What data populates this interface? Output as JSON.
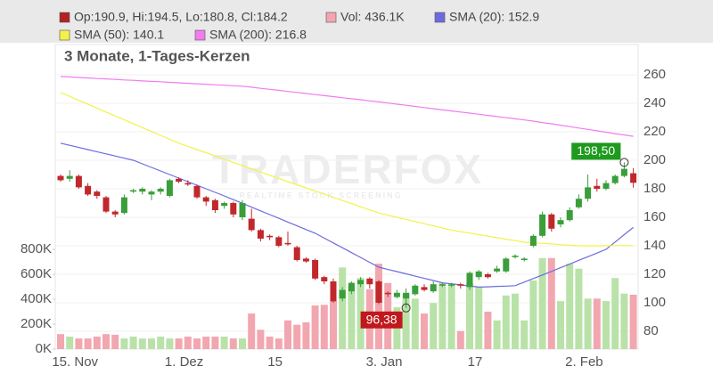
{
  "chart_data": {
    "type": "candlestick",
    "subtitle": "3 Monate, 1-Tages-Kerzen",
    "watermark": {
      "text": "TRADERFOX",
      "tagline": "REALTIME STOCK SCREENING"
    },
    "categories": [
      null,
      "15. Nov",
      null,
      null,
      null,
      null,
      null,
      null,
      null,
      null,
      null,
      null,
      null,
      "1. Dez",
      null,
      null,
      null,
      null,
      null,
      null,
      null,
      null,
      null,
      "15",
      null,
      null,
      null,
      null,
      null,
      null,
      null,
      null,
      null,
      null,
      null,
      "3. Jan",
      null,
      null,
      null,
      null,
      null,
      null,
      null,
      null,
      null,
      "17",
      null,
      null,
      null,
      null,
      null,
      null,
      null,
      null,
      null,
      null,
      null,
      "2. Feb",
      null,
      null,
      null,
      null,
      null,
      null
    ],
    "candles": {
      "name": "Op:190.9, Hi:194.5, Lo:180.8, Cl:184.2",
      "color": "#b22222",
      "up_color": "#3a9e3a",
      "down_color": "#c0282c",
      "open": [
        189,
        187,
        189,
        182,
        178,
        174,
        164,
        163,
        178,
        178,
        176,
        178,
        175,
        187,
        184,
        182,
        174,
        172,
        168,
        170,
        160,
        159,
        151,
        147,
        146,
        142,
        139,
        131,
        130,
        118,
        115,
        103,
        108,
        113,
        117,
        115,
        107,
        104,
        103,
        106,
        111,
        108,
        112,
        112,
        113,
        111,
        118,
        120,
        122,
        122,
        132,
        130,
        140,
        147,
        162,
        155,
        158,
        167,
        173,
        182,
        180,
        184,
        189,
        190.9
      ],
      "high": [
        190,
        193,
        190,
        184,
        179,
        175,
        165,
        176,
        180,
        181,
        179,
        181,
        187,
        188,
        186,
        183,
        175,
        173,
        171,
        171,
        172,
        166,
        152,
        148,
        147,
        150,
        140,
        132,
        131,
        119,
        117,
        111,
        115,
        118,
        118,
        116,
        108,
        109,
        110,
        113,
        113,
        115,
        114,
        114,
        114,
        122,
        123,
        121,
        126,
        132,
        134,
        132,
        148,
        164,
        163,
        160,
        167,
        176,
        190,
        187,
        186,
        190,
        198.5,
        194.5
      ],
      "low": [
        185,
        185,
        180,
        175,
        173,
        163,
        160,
        162,
        177,
        176,
        172,
        176,
        174,
        184,
        182,
        173,
        168,
        163,
        166,
        160,
        158,
        150,
        143,
        144,
        139,
        140,
        129,
        128,
        116,
        113,
        100,
        101,
        106,
        111,
        110,
        99,
        104,
        103,
        96.38,
        105,
        108,
        107,
        111,
        111,
        110,
        109,
        116,
        117,
        121,
        121,
        131,
        129,
        139,
        146,
        150,
        153,
        157,
        166,
        171,
        178,
        179,
        183,
        188,
        180.8
      ],
      "close": [
        186,
        189,
        181,
        176,
        175,
        164,
        162,
        174,
        179,
        180,
        178,
        180,
        186,
        185,
        183,
        174,
        171,
        165,
        170,
        162,
        170,
        151,
        145,
        146,
        140,
        141,
        130,
        129,
        117,
        115,
        101,
        109,
        114,
        116,
        113,
        100,
        106,
        107,
        107,
        112,
        109,
        113,
        113,
        113,
        112,
        121,
        122,
        118,
        124,
        131,
        133,
        131,
        147,
        162,
        152,
        158,
        165,
        173,
        181,
        180,
        184,
        189,
        194,
        184.2
      ]
    },
    "volume": {
      "name": "Vol: 436.1K",
      "color": "#f2a7b0",
      "up_color": "#b9e2a8",
      "axis": "y2",
      "values": [
        120,
        100,
        85,
        85,
        100,
        120,
        115,
        85,
        100,
        85,
        85,
        100,
        85,
        85,
        100,
        85,
        100,
        100,
        100,
        85,
        85,
        285,
        155,
        100,
        85,
        230,
        195,
        215,
        350,
        355,
        385,
        655,
        500,
        570,
        480,
        685,
        530,
        335,
        445,
        405,
        285,
        370,
        530,
        515,
        145,
        530,
        500,
        300,
        230,
        430,
        445,
        230,
        550,
        730,
        730,
        385,
        685,
        645,
        405,
        405,
        385,
        570,
        445,
        436.1
      ]
    },
    "series": [
      {
        "name": "SMA (20): 152.9",
        "color": "#6b6be0",
        "values": [
          212,
          210.5,
          209,
          207.5,
          206,
          204.5,
          203,
          201.5,
          200,
          197.5,
          195,
          192.5,
          190,
          187.5,
          185,
          182.5,
          180,
          177.5,
          175,
          172.4,
          169.8,
          167.1,
          164.5,
          161.9,
          159.3,
          156.6,
          154.0,
          151.4,
          148.8,
          145.4,
          142.0,
          138.6,
          135.2,
          131.8,
          128.4,
          125.0,
          123.4,
          121.9,
          120.3,
          118.7,
          117.1,
          115.6,
          114.0,
          113.3,
          112.5,
          111.8,
          111.0,
          111.2,
          111.5,
          111.7,
          112.0,
          114.5,
          117.0,
          119.5,
          122.0,
          124.6,
          127.1,
          129.8,
          132.3,
          134.9,
          137.5,
          142.6,
          147.8,
          152.9
        ]
      },
      {
        "name": "SMA (50): 140.1",
        "color": "#f2f24a",
        "values": [
          247.5,
          244.8,
          242.0,
          239.3,
          236.6,
          233.8,
          231.1,
          228.4,
          225.7,
          222.9,
          220.2,
          217.5,
          214.7,
          212.0,
          209.8,
          207.5,
          205.3,
          203.0,
          200.8,
          198.5,
          196.3,
          194.0,
          191.8,
          189.5,
          187.3,
          185.0,
          182.8,
          180.6,
          178.4,
          176.2,
          174.0,
          171.8,
          169.6,
          167.4,
          165.2,
          163.0,
          161.5,
          160.0,
          158.5,
          157.0,
          155.5,
          154.0,
          152.5,
          151.0,
          149.9,
          148.9,
          147.8,
          146.8,
          145.7,
          144.6,
          143.6,
          142.5,
          142.1,
          141.7,
          141.3,
          140.8,
          140.4,
          140.0,
          140.0,
          140.0,
          140.0,
          140.1,
          140.1,
          140.1
        ]
      },
      {
        "name": "SMA (200): 216.8",
        "color": "#f07cf0",
        "values": [
          258.8,
          258.5,
          258.1,
          257.8,
          257.4,
          257.1,
          256.8,
          256.4,
          256.1,
          255.7,
          255.4,
          255.1,
          254.7,
          254.4,
          254.0,
          253.7,
          253.4,
          253.0,
          252.7,
          252.3,
          252.0,
          251.3,
          250.5,
          249.8,
          249.1,
          248.3,
          247.6,
          246.9,
          246.1,
          245.4,
          244.7,
          243.9,
          243.2,
          242.5,
          241.7,
          241.0,
          240.2,
          239.4,
          238.6,
          237.8,
          237.0,
          236.2,
          235.4,
          234.6,
          233.9,
          233.1,
          232.3,
          231.5,
          230.7,
          229.9,
          229.1,
          228.3,
          227.5,
          226.5,
          225.6,
          224.6,
          223.6,
          222.6,
          221.7,
          220.7,
          219.7,
          218.7,
          217.8,
          216.8
        ]
      }
    ],
    "annotations": [
      {
        "value": 198.5,
        "label": "198,50",
        "color": "#1e9a1e"
      },
      {
        "value": 96.38,
        "label": "96,38",
        "color": "#c0181c"
      }
    ],
    "ylim": [
      67.5,
      281.25
    ],
    "yticks": [
      80,
      100,
      120,
      140,
      160,
      180,
      200,
      220,
      240,
      260
    ],
    "y2lim": [
      0,
      2443
    ],
    "y2ticks": [
      {
        "value": 0,
        "label": "0K"
      },
      {
        "value": 200,
        "label": "200K"
      },
      {
        "value": 400,
        "label": "400K"
      },
      {
        "value": 600,
        "label": "600K"
      },
      {
        "value": 800,
        "label": "800K"
      }
    ],
    "grid": true
  }
}
